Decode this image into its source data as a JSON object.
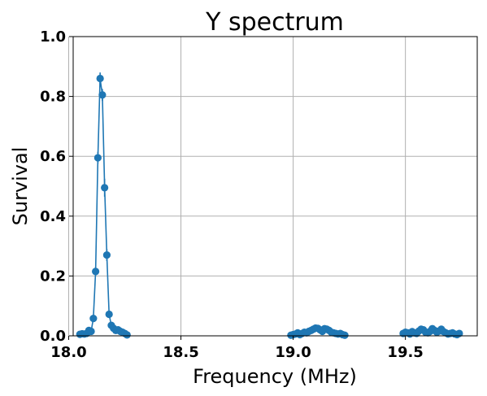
{
  "chart_data": {
    "type": "line",
    "title": "Y spectrum",
    "xlabel": "Frequency (MHz)",
    "ylabel": "Survival",
    "xlim": [
      18.02,
      19.82
    ],
    "ylim": [
      0.0,
      1.0
    ],
    "xticks": [
      18.0,
      18.5,
      19.0,
      19.5
    ],
    "xtick_labels": [
      "18.0",
      "18.5",
      "19.0",
      "19.5"
    ],
    "yticks": [
      0.0,
      0.2,
      0.4,
      0.6,
      0.8,
      1.0
    ],
    "ytick_labels": [
      "0.0",
      "0.2",
      "0.4",
      "0.6",
      "0.8",
      "1.0"
    ],
    "grid": true,
    "color": "#1f77b4",
    "series": [
      {
        "x": [
          18.05,
          18.06,
          18.07,
          18.08,
          18.09,
          18.1,
          18.11,
          18.12,
          18.13,
          18.14,
          18.15,
          18.16,
          18.17,
          18.18,
          18.19,
          18.2,
          18.21,
          18.22,
          18.23,
          18.24,
          18.25,
          18.26
        ],
        "y": [
          0.005,
          0.007,
          0.006,
          0.008,
          0.018,
          0.015,
          0.058,
          0.215,
          0.595,
          0.86,
          0.805,
          0.495,
          0.27,
          0.072,
          0.035,
          0.025,
          0.018,
          0.02,
          0.015,
          0.012,
          0.008,
          0.003
        ],
        "yerr": [
          0.004,
          0.004,
          0.004,
          0.004,
          0.006,
          0.006,
          0.01,
          0.015,
          0.02,
          0.02,
          0.02,
          0.03,
          0.02,
          0.01,
          0.008,
          0.006,
          0.006,
          0.006,
          0.005,
          0.005,
          0.004,
          0.003
        ]
      },
      {
        "x": [
          18.99,
          19.0,
          19.01,
          19.02,
          19.03,
          19.04,
          19.05,
          19.06,
          19.07,
          19.08,
          19.09,
          19.1,
          19.11,
          19.12,
          19.13,
          19.14,
          19.15,
          19.16,
          19.17,
          19.18,
          19.19,
          19.2,
          19.21,
          19.22,
          19.23
        ],
        "y": [
          0.002,
          0.004,
          0.006,
          0.01,
          0.004,
          0.008,
          0.012,
          0.01,
          0.015,
          0.018,
          0.022,
          0.026,
          0.025,
          0.02,
          0.015,
          0.024,
          0.022,
          0.018,
          0.012,
          0.01,
          0.008,
          0.006,
          0.008,
          0.004,
          0.002
        ],
        "yerr": []
      },
      {
        "x": [
          19.49,
          19.5,
          19.51,
          19.52,
          19.53,
          19.54,
          19.55,
          19.56,
          19.57,
          19.58,
          19.59,
          19.6,
          19.61,
          19.62,
          19.63,
          19.64,
          19.65,
          19.66,
          19.67,
          19.68,
          19.69,
          19.7,
          19.71,
          19.72,
          19.73,
          19.74
        ],
        "y": [
          0.008,
          0.012,
          0.01,
          0.006,
          0.014,
          0.01,
          0.008,
          0.016,
          0.022,
          0.02,
          0.012,
          0.01,
          0.015,
          0.024,
          0.018,
          0.012,
          0.016,
          0.022,
          0.014,
          0.01,
          0.006,
          0.008,
          0.01,
          0.006,
          0.004,
          0.008
        ],
        "yerr": []
      }
    ]
  }
}
